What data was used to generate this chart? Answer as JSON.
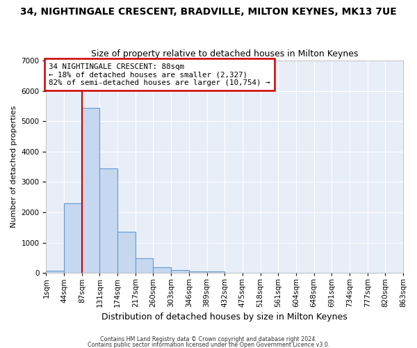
{
  "title": "34, NIGHTINGALE CRESCENT, BRADVILLE, MILTON KEYNES, MK13 7UE",
  "subtitle": "Size of property relative to detached houses in Milton Keynes",
  "xlabel": "Distribution of detached houses by size in Milton Keynes",
  "ylabel": "Number of detached properties",
  "bar_values": [
    75,
    2300,
    5450,
    3450,
    1350,
    480,
    185,
    100,
    55,
    55,
    0,
    0,
    0,
    0,
    0,
    0,
    0,
    0,
    0,
    0
  ],
  "bar_labels": [
    "1sqm",
    "44sqm",
    "87sqm",
    "131sqm",
    "174sqm",
    "217sqm",
    "260sqm",
    "303sqm",
    "346sqm",
    "389sqm",
    "432sqm",
    "475sqm",
    "518sqm",
    "561sqm",
    "604sqm",
    "648sqm",
    "691sqm",
    "734sqm",
    "777sqm",
    "820sqm",
    "863sqm"
  ],
  "bar_color": "#c5d8f0",
  "bar_edge_color": "#6699cc",
  "vline_color": "#cc0000",
  "annotation_text": "34 NIGHTINGALE CRESCENT: 88sqm\n← 18% of detached houses are smaller (2,327)\n82% of semi-detached houses are larger (10,754) →",
  "annotation_box_facecolor": "#ffffff",
  "annotation_box_edgecolor": "#cc0000",
  "ylim": [
    0,
    7000
  ],
  "yticks": [
    0,
    1000,
    2000,
    3000,
    4000,
    5000,
    6000,
    7000
  ],
  "plot_bg_color": "#e8eef8",
  "fig_bg_color": "#ffffff",
  "grid_color": "#ffffff",
  "title_fontsize": 10,
  "subtitle_fontsize": 9,
  "xlabel_fontsize": 9,
  "ylabel_fontsize": 8,
  "tick_fontsize": 7.5,
  "footer1": "Contains HM Land Registry data © Crown copyright and database right 2024.",
  "footer2": "Contains public sector information licensed under the Open Government Licence v3.0."
}
